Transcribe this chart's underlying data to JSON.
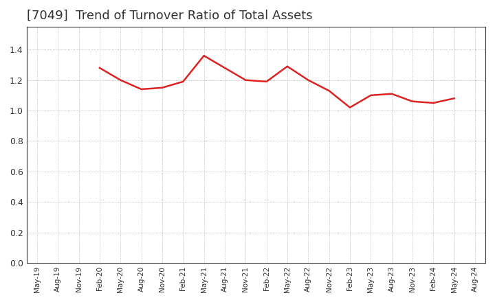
{
  "title": "[7049]  Trend of Turnover Ratio of Total Assets",
  "title_fontsize": 13,
  "background_color": "#ffffff",
  "plot_bg_color": "#ffffff",
  "grid_color": "#aaaaaa",
  "line_color": "#dd2222",
  "ylim": [
    0.0,
    1.55
  ],
  "yticks": [
    0.0,
    0.2,
    0.4,
    0.6,
    0.8,
    1.0,
    1.2,
    1.4
  ],
  "x_labels": [
    "May-19",
    "Aug-19",
    "Nov-19",
    "Feb-20",
    "May-20",
    "Aug-20",
    "Nov-20",
    "Feb-21",
    "May-21",
    "Aug-21",
    "Nov-21",
    "Feb-22",
    "May-22",
    "Aug-22",
    "Nov-22",
    "Feb-23",
    "May-23",
    "Aug-23",
    "Nov-23",
    "Feb-24",
    "May-24",
    "Aug-24"
  ],
  "values": [
    null,
    null,
    null,
    1.28,
    1.2,
    1.14,
    1.15,
    1.19,
    1.36,
    1.28,
    1.2,
    1.19,
    1.29,
    1.2,
    1.13,
    1.02,
    1.1,
    1.11,
    1.06,
    1.05,
    1.08,
    null
  ]
}
